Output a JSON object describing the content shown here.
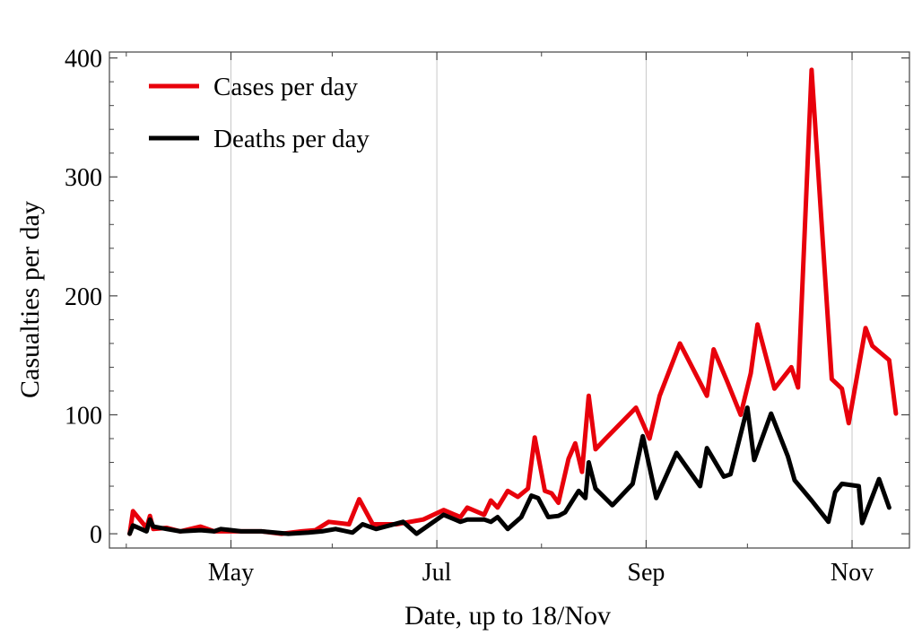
{
  "chart_data": {
    "type": "line",
    "xlabel": "Date, up to 18/Nov",
    "ylabel": "Casualties per day",
    "x_ticks": [
      {
        "label": "May",
        "day": 31
      },
      {
        "label": "Jul",
        "day": 92
      },
      {
        "label": "Sep",
        "day": 154
      },
      {
        "label": "Nov",
        "day": 215
      }
    ],
    "xlim_day": [
      -5,
      232
    ],
    "ylim": [
      -12,
      405
    ],
    "y_ticks": [
      0,
      100,
      200,
      300,
      400
    ],
    "grid": "vertical at month ticks",
    "legend_position": "top-left",
    "series": [
      {
        "name": "Cases per day",
        "color": "#e8000b",
        "points": [
          [
            1,
            0
          ],
          [
            2,
            19
          ],
          [
            6,
            5
          ],
          [
            7,
            15
          ],
          [
            8,
            4
          ],
          [
            12,
            5
          ],
          [
            16,
            2
          ],
          [
            22,
            6
          ],
          [
            26,
            2
          ],
          [
            30,
            2
          ],
          [
            34,
            2
          ],
          [
            40,
            2
          ],
          [
            46,
            0
          ],
          [
            52,
            2
          ],
          [
            56,
            3
          ],
          [
            60,
            10
          ],
          [
            66,
            8
          ],
          [
            69,
            29
          ],
          [
            73,
            8
          ],
          [
            80,
            8
          ],
          [
            88,
            12
          ],
          [
            94,
            20
          ],
          [
            99,
            14
          ],
          [
            101,
            22
          ],
          [
            106,
            16
          ],
          [
            108,
            28
          ],
          [
            110,
            22
          ],
          [
            113,
            36
          ],
          [
            116,
            31
          ],
          [
            119,
            38
          ],
          [
            121,
            81
          ],
          [
            124,
            36
          ],
          [
            126,
            34
          ],
          [
            128,
            26
          ],
          [
            131,
            63
          ],
          [
            133,
            76
          ],
          [
            135,
            52
          ],
          [
            137,
            116
          ],
          [
            139,
            71
          ],
          [
            142,
            80
          ],
          [
            151,
            106
          ],
          [
            155,
            80
          ],
          [
            158,
            116
          ],
          [
            164,
            160
          ],
          [
            172,
            116
          ],
          [
            174,
            155
          ],
          [
            178,
            128
          ],
          [
            182,
            100
          ],
          [
            185,
            135
          ],
          [
            187,
            176
          ],
          [
            192,
            122
          ],
          [
            197,
            140
          ],
          [
            199,
            123
          ],
          [
            203,
            390
          ],
          [
            209,
            130
          ],
          [
            212,
            122
          ],
          [
            214,
            93
          ],
          [
            219,
            173
          ],
          [
            221,
            158
          ],
          [
            226,
            146
          ],
          [
            228,
            101
          ]
        ]
      },
      {
        "name": "Deaths per day",
        "color": "#000000",
        "points": [
          [
            1,
            0
          ],
          [
            2,
            7
          ],
          [
            6,
            2
          ],
          [
            7,
            12
          ],
          [
            8,
            6
          ],
          [
            12,
            4
          ],
          [
            16,
            2
          ],
          [
            22,
            3
          ],
          [
            26,
            2
          ],
          [
            28,
            4
          ],
          [
            34,
            2
          ],
          [
            40,
            2
          ],
          [
            48,
            0
          ],
          [
            54,
            1
          ],
          [
            58,
            2
          ],
          [
            62,
            4
          ],
          [
            67,
            1
          ],
          [
            70,
            8
          ],
          [
            74,
            4
          ],
          [
            78,
            7
          ],
          [
            82,
            10
          ],
          [
            86,
            0
          ],
          [
            94,
            16
          ],
          [
            99,
            10
          ],
          [
            101,
            12
          ],
          [
            106,
            12
          ],
          [
            108,
            10
          ],
          [
            110,
            14
          ],
          [
            113,
            4
          ],
          [
            117,
            14
          ],
          [
            120,
            32
          ],
          [
            122,
            30
          ],
          [
            125,
            14
          ],
          [
            128,
            15
          ],
          [
            130,
            18
          ],
          [
            134,
            36
          ],
          [
            136,
            30
          ],
          [
            137,
            60
          ],
          [
            139,
            38
          ],
          [
            144,
            24
          ],
          [
            150,
            42
          ],
          [
            153,
            82
          ],
          [
            157,
            30
          ],
          [
            163,
            68
          ],
          [
            170,
            40
          ],
          [
            172,
            72
          ],
          [
            177,
            48
          ],
          [
            179,
            50
          ],
          [
            184,
            106
          ],
          [
            186,
            62
          ],
          [
            191,
            101
          ],
          [
            196,
            65
          ],
          [
            198,
            45
          ],
          [
            203,
            28
          ],
          [
            208,
            10
          ],
          [
            210,
            35
          ],
          [
            212,
            42
          ],
          [
            217,
            40
          ],
          [
            218,
            9
          ],
          [
            223,
            46
          ],
          [
            226,
            22
          ]
        ]
      }
    ]
  }
}
